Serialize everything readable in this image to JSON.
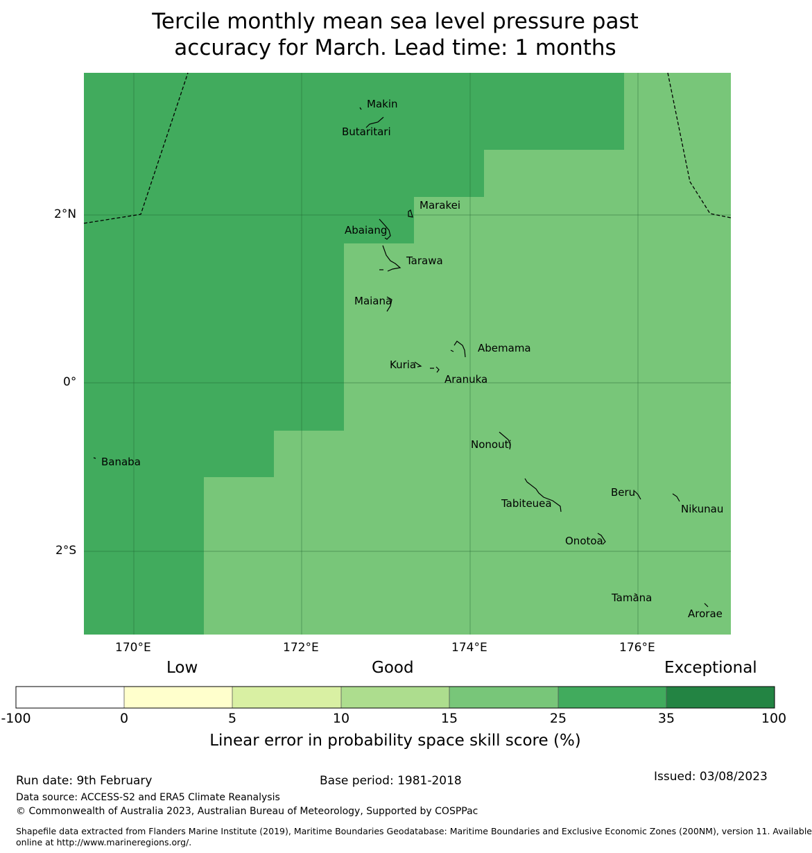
{
  "title": {
    "line1": "Tercile monthly mean sea level pressure past",
    "line2": "accuracy for March. Lead time: 1 months"
  },
  "map": {
    "lon_labels": [
      "170°E",
      "172°E",
      "174°E",
      "176°E"
    ],
    "lat_labels": [
      "2°N",
      "0°",
      "2°S"
    ],
    "regions": [
      {
        "name": "west",
        "category": "25-35"
      },
      {
        "name": "east",
        "category": "15-25"
      }
    ],
    "places": [
      {
        "name": "Makin"
      },
      {
        "name": "Butaritari"
      },
      {
        "name": "Marakei"
      },
      {
        "name": "Abaiang"
      },
      {
        "name": "Tarawa"
      },
      {
        "name": "Maiana"
      },
      {
        "name": "Abemama"
      },
      {
        "name": "Kuria"
      },
      {
        "name": "Aranuka"
      },
      {
        "name": "Nonouti"
      },
      {
        "name": "Banaba"
      },
      {
        "name": "Beru"
      },
      {
        "name": "Tabiteuea"
      },
      {
        "name": "Nikunau"
      },
      {
        "name": "Onotoa"
      },
      {
        "name": "Tamana"
      },
      {
        "name": "Arorae"
      }
    ]
  },
  "legend": {
    "categories": [
      "Low",
      "Good",
      "Exceptional"
    ],
    "ticks": [
      "-100",
      "0",
      "5",
      "10",
      "15",
      "25",
      "35",
      "100"
    ],
    "colors": [
      "#ffffff",
      "#ffffcc",
      "#d9f0a3",
      "#addd8e",
      "#78c679",
      "#41ab5d",
      "#238443"
    ],
    "label": "Linear error in probability space skill score (%)"
  },
  "footer": {
    "run_date": "Run date: 9th February",
    "base_period": "Base period: 1981-2018",
    "issued": "Issued: 03/08/2023",
    "data_source": "Data source: ACCESS-S2 and ERA5 Climate Reanalysis",
    "copyright": "© Commonwealth of Australia 2023, Australian Bureau of Meteorology, Supported by COSPPac",
    "shapefile_line1": "Shapefile data extracted from Flanders Marine Institute (2019), Maritime Boundaries Geodatabase: Maritime Boundaries and Exclusive Economic Zones (200NM), version 11. Available",
    "shapefile_line2": "online at http://www.marineregions.org/."
  }
}
